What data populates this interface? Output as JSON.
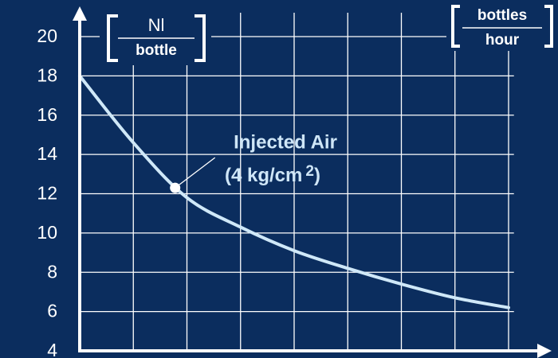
{
  "chart_data": {
    "type": "line",
    "y_unit": {
      "numerator": "Nl",
      "denominator": "bottle"
    },
    "x_unit": {
      "numerator": "bottles",
      "denominator": "hour"
    },
    "x": [
      0,
      1,
      2,
      3,
      4,
      5,
      6,
      7,
      8
    ],
    "series": [
      {
        "color": "#cfe8f8",
        "values": [
          18,
          14.6,
          11.8,
          10.3,
          9.1,
          8.2,
          7.4,
          6.7,
          6.2
        ]
      }
    ],
    "xlim": [
      0,
      8.1
    ],
    "xticks": [
      0,
      1,
      2,
      3,
      4,
      5,
      6,
      7,
      8
    ],
    "ylim": [
      4,
      20
    ],
    "yticks": [
      4,
      6,
      8,
      10,
      12,
      14,
      16,
      18,
      20
    ],
    "grid": true,
    "annotation": {
      "line1": "Injected Air",
      "line2": "(4 kg/cm",
      "superscript": "2",
      "close": ")",
      "x": 1.78,
      "y": 12.3
    }
  }
}
